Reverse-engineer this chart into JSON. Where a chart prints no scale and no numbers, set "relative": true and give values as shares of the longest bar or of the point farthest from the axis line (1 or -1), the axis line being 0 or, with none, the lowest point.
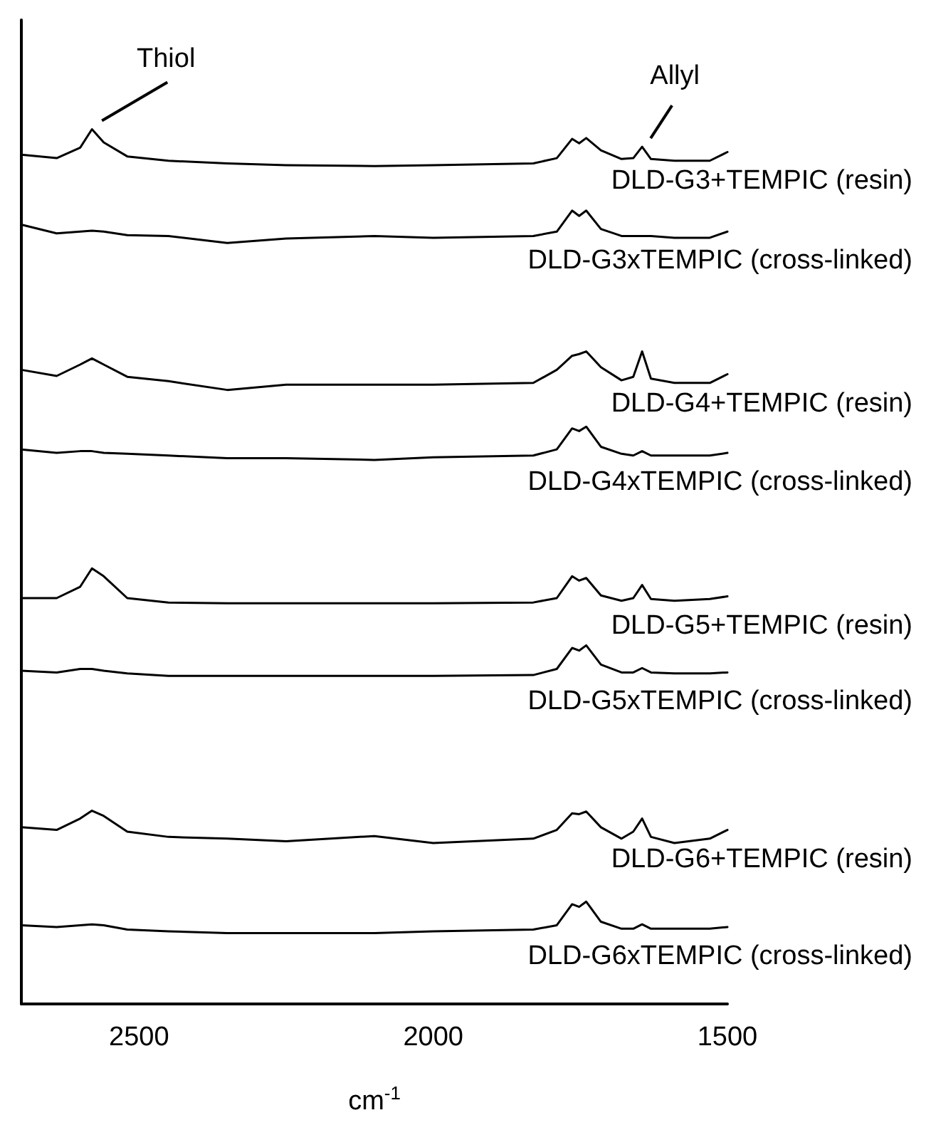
{
  "chart_data": {
    "type": "line",
    "relative": true,
    "xlabel": "cm$^{-1}$",
    "xlim": [
      2700,
      1500
    ],
    "xticks": [
      2500,
      2000,
      1500
    ],
    "grid": false,
    "legend": "right",
    "marker": "none",
    "line_style": "solid",
    "x": [
      2700,
      2640,
      2600,
      2580,
      2560,
      2520,
      2450,
      2350,
      2250,
      2100,
      2000,
      1830,
      1790,
      1764,
      1752,
      1740,
      1715,
      1680,
      1660,
      1645,
      1630,
      1590,
      1530,
      1500
    ],
    "annotations": [
      {
        "text": "Thiol",
        "x": 2580,
        "y": 1.0
      },
      {
        "text": "Allyl",
        "x": 1645,
        "y": 0.98
      }
    ],
    "series": [
      {
        "name": "DLD-G3+TEMPIC (resin)",
        "color": "#000000",
        "values": [
          0.971,
          0.967,
          0.979,
          1.0,
          0.985,
          0.969,
          0.964,
          0.961,
          0.959,
          0.958,
          0.959,
          0.961,
          0.967,
          0.989,
          0.984,
          0.99,
          0.976,
          0.966,
          0.967,
          0.98,
          0.966,
          0.964,
          0.964,
          0.974
        ]
      },
      {
        "name": "DLD-G3xTEMPIC (cross-linked)",
        "color": "#000000",
        "values": [
          0.891,
          0.881,
          0.883,
          0.884,
          0.883,
          0.879,
          0.878,
          0.87,
          0.875,
          0.878,
          0.876,
          0.878,
          0.883,
          0.907,
          0.901,
          0.907,
          0.886,
          0.878,
          0.878,
          0.878,
          0.878,
          0.876,
          0.876,
          0.883
        ]
      },
      {
        "name": "DLD-G4+TEMPIC (resin)",
        "color": "#000000",
        "values": [
          0.725,
          0.718,
          0.731,
          0.738,
          0.731,
          0.717,
          0.712,
          0.702,
          0.708,
          0.708,
          0.708,
          0.71,
          0.725,
          0.741,
          0.743,
          0.746,
          0.728,
          0.713,
          0.717,
          0.746,
          0.715,
          0.71,
          0.71,
          0.72
        ]
      },
      {
        "name": "DLD-G4xTEMPIC (cross-linked)",
        "color": "#000000",
        "values": [
          0.634,
          0.63,
          0.632,
          0.632,
          0.63,
          0.629,
          0.627,
          0.624,
          0.624,
          0.622,
          0.625,
          0.627,
          0.634,
          0.658,
          0.655,
          0.66,
          0.637,
          0.629,
          0.627,
          0.632,
          0.627,
          0.627,
          0.627,
          0.63
        ]
      },
      {
        "name": "DLD-G5+TEMPIC (resin)",
        "color": "#000000",
        "values": [
          0.464,
          0.464,
          0.477,
          0.498,
          0.489,
          0.464,
          0.459,
          0.458,
          0.458,
          0.458,
          0.458,
          0.459,
          0.464,
          0.489,
          0.484,
          0.487,
          0.467,
          0.461,
          0.464,
          0.479,
          0.463,
          0.461,
          0.463,
          0.466
        ]
      },
      {
        "name": "DLD-G5xTEMPIC (cross-linked)",
        "color": "#000000",
        "values": [
          0.381,
          0.379,
          0.383,
          0.383,
          0.381,
          0.378,
          0.375,
          0.375,
          0.375,
          0.375,
          0.375,
          0.376,
          0.383,
          0.407,
          0.404,
          0.41,
          0.388,
          0.379,
          0.379,
          0.384,
          0.379,
          0.378,
          0.378,
          0.379
        ]
      },
      {
        "name": "DLD-G6+TEMPIC (resin)",
        "color": "#000000",
        "values": [
          0.202,
          0.199,
          0.212,
          0.221,
          0.215,
          0.197,
          0.191,
          0.189,
          0.186,
          0.192,
          0.184,
          0.189,
          0.199,
          0.218,
          0.217,
          0.22,
          0.202,
          0.189,
          0.197,
          0.212,
          0.191,
          0.184,
          0.189,
          0.199
        ]
      },
      {
        "name": "DLD-G6xTEMPIC (cross-linked)",
        "color": "#000000",
        "values": [
          0.09,
          0.088,
          0.09,
          0.091,
          0.09,
          0.085,
          0.083,
          0.081,
          0.081,
          0.081,
          0.083,
          0.085,
          0.09,
          0.114,
          0.111,
          0.117,
          0.094,
          0.086,
          0.086,
          0.091,
          0.086,
          0.086,
          0.086,
          0.088
        ]
      }
    ]
  }
}
